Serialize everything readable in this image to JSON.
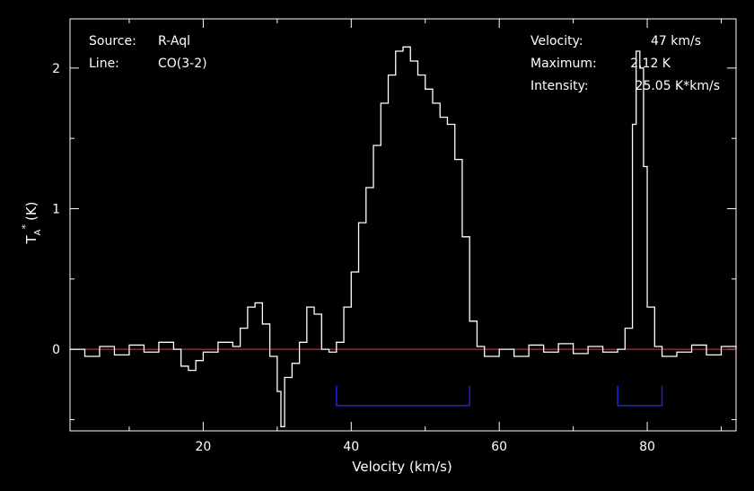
{
  "colors": {
    "background": "#000000",
    "foreground": "#ffffff",
    "baseline": "#ff2a2a",
    "window": "#2020dd"
  },
  "annotations": {
    "source_label": "Source:",
    "source_value": "R-Aql",
    "line_label": "Line:",
    "line_value": "CO(3-2)",
    "velocity_label": "Velocity:",
    "velocity_value": "47 km/s",
    "maximum_label": "Maximum:",
    "maximum_value": "2.12 K",
    "intensity_label": "Intensity:",
    "intensity_value": "25.05 K*km/s"
  },
  "chart_data": {
    "type": "line",
    "title": "",
    "xlabel": "Velocity (km/s)",
    "ylabel_base": "T",
    "ylabel_sup": "*",
    "ylabel_sub": "A",
    "ylabel_unit": "(K)",
    "xlim": [
      2,
      92
    ],
    "ylim": [
      -0.58,
      2.35
    ],
    "x_ticks": [
      "20",
      "40",
      "60",
      "80"
    ],
    "x_tick_values": [
      20,
      40,
      60,
      80
    ],
    "y_ticks": [
      "0",
      "1",
      "2"
    ],
    "y_tick_values": [
      0,
      1,
      2
    ],
    "baseline_value": 0,
    "windows": [
      {
        "x_start": 38,
        "x_end": 56,
        "level": -0.4
      },
      {
        "x_start": 76,
        "x_end": 82,
        "level": -0.4
      }
    ],
    "series": [
      {
        "style": "histogram",
        "x": [
          2,
          4,
          6,
          8,
          10,
          12,
          14,
          16,
          17,
          18,
          19,
          20,
          22,
          24,
          25,
          26,
          27,
          28,
          29,
          30,
          30.5,
          31,
          32,
          33,
          34,
          35,
          36,
          37,
          38,
          39,
          40,
          41,
          42,
          43,
          44,
          45,
          46,
          47,
          48,
          49,
          50,
          51,
          52,
          53,
          54,
          55,
          56,
          57,
          58,
          60,
          62,
          64,
          66,
          68,
          70,
          72,
          74,
          76,
          77,
          78,
          78.5,
          79,
          79.5,
          80,
          81,
          82,
          84,
          86,
          88,
          90,
          92
        ],
        "y": [
          0.0,
          -0.05,
          0.02,
          -0.04,
          0.03,
          -0.02,
          0.05,
          0.0,
          -0.12,
          -0.15,
          -0.08,
          -0.02,
          0.05,
          0.02,
          0.15,
          0.3,
          0.33,
          0.18,
          -0.05,
          -0.3,
          -0.55,
          -0.2,
          -0.1,
          0.05,
          0.3,
          0.25,
          0.0,
          -0.02,
          0.05,
          0.3,
          0.55,
          0.9,
          1.15,
          1.45,
          1.75,
          1.95,
          2.12,
          2.15,
          2.05,
          1.95,
          1.85,
          1.75,
          1.65,
          1.6,
          1.35,
          0.8,
          0.2,
          0.02,
          -0.05,
          0.0,
          -0.05,
          0.03,
          -0.02,
          0.04,
          -0.03,
          0.02,
          -0.02,
          0.0,
          0.15,
          1.6,
          2.12,
          2.0,
          1.3,
          0.3,
          0.02,
          -0.05,
          -0.02,
          0.03,
          -0.04,
          0.02,
          0.0
        ]
      }
    ]
  }
}
